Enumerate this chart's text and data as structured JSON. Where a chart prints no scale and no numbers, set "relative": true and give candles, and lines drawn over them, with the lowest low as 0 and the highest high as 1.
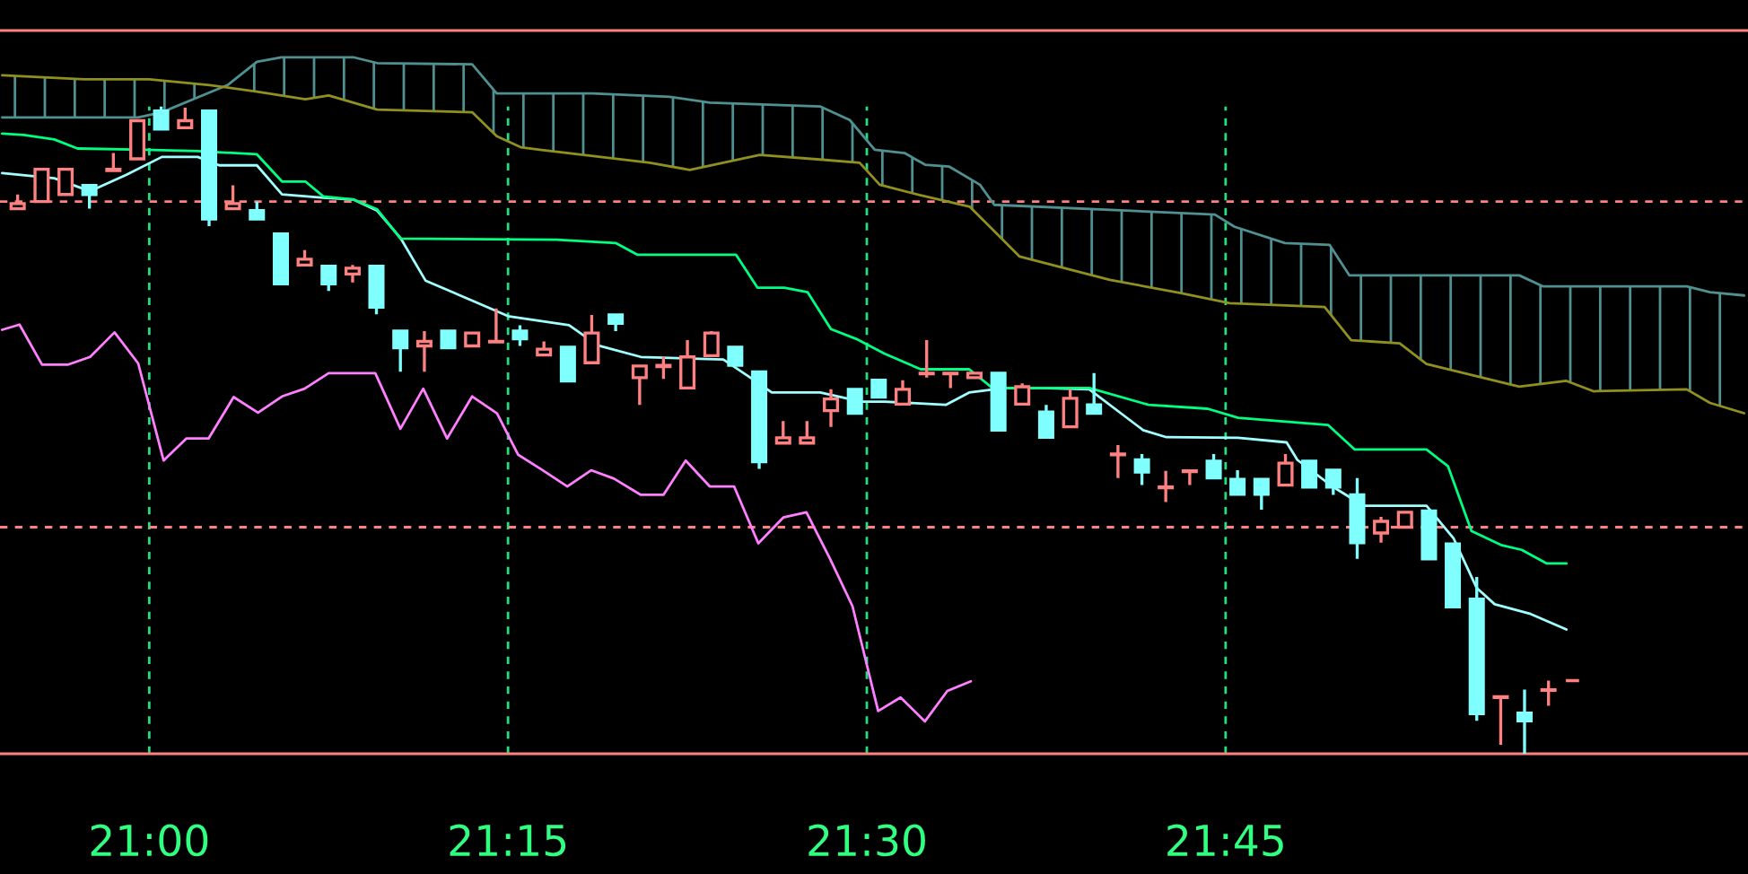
{
  "chart_data": {
    "type": "candlestick",
    "relative": true,
    "x": [
      20.9083,
      20.925,
      20.9417,
      20.9583,
      20.975,
      20.9917,
      21.0083,
      21.025,
      21.0417,
      21.0583,
      21.075,
      21.0917,
      21.1083,
      21.125,
      21.1417,
      21.1583,
      21.175,
      21.1917,
      21.2083,
      21.225,
      21.2417,
      21.2583,
      21.275,
      21.2917,
      21.3083,
      21.325,
      21.3417,
      21.3583,
      21.375,
      21.3917,
      21.4083,
      21.425,
      21.4417,
      21.4583,
      21.475,
      21.4917,
      21.5083,
      21.525,
      21.5417,
      21.5583,
      21.575,
      21.5917,
      21.6083,
      21.625,
      21.6417,
      21.6583,
      21.675,
      21.6917,
      21.7083,
      21.725,
      21.7417,
      21.7583,
      21.775,
      21.7917,
      21.8083,
      21.825,
      21.8417,
      21.8583,
      21.875,
      21.8917,
      21.9083,
      21.925,
      21.9417,
      21.9583,
      21.975,
      21.9917
    ],
    "ohlc": [
      [
        0.842,
        0.864,
        0.842,
        0.85
      ],
      [
        0.853,
        0.903,
        0.853,
        0.903
      ],
      [
        0.864,
        0.903,
        0.864,
        0.903
      ],
      [
        0.878,
        0.878,
        0.842,
        0.864
      ],
      [
        0.901,
        0.928,
        0.901,
        0.903
      ],
      [
        0.919,
        0.978,
        0.919,
        0.978
      ],
      [
        0.993,
        1,
        0.965,
        0.965
      ],
      [
        0.967,
        0.998,
        0.967,
        0.978
      ],
      [
        0.993,
        0.993,
        0.815,
        0.826
      ],
      [
        0.842,
        0.878,
        0.842,
        0.85
      ],
      [
        0.839,
        0.853,
        0.826,
        0.826
      ],
      [
        0.803,
        0.803,
        0.726,
        0.726
      ],
      [
        0.755,
        0.778,
        0.755,
        0.764
      ],
      [
        0.753,
        0.753,
        0.715,
        0.726
      ],
      [
        0.741,
        0.755,
        0.728,
        0.75
      ],
      [
        0.753,
        0.753,
        0.679,
        0.69
      ],
      [
        0.653,
        0.653,
        0.59,
        0.627
      ],
      [
        0.63,
        0.653,
        0.59,
        0.637
      ],
      [
        0.653,
        0.653,
        0.627,
        0.627
      ],
      [
        0.63,
        0.65,
        0.63,
        0.65
      ],
      [
        0.636,
        0.688,
        0.636,
        0.637
      ],
      [
        0.653,
        0.662,
        0.63,
        0.641
      ],
      [
        0.616,
        0.637,
        0.616,
        0.625
      ],
      [
        0.628,
        0.628,
        0.576,
        0.576
      ],
      [
        0.604,
        0.678,
        0.604,
        0.65
      ],
      [
        0.678,
        0.678,
        0.653,
        0.665
      ],
      [
        0.581,
        0.599,
        0.539,
        0.599
      ],
      [
        0.598,
        0.613,
        0.579,
        0.6
      ],
      [
        0.565,
        0.639,
        0.565,
        0.613
      ],
      [
        0.615,
        0.653,
        0.615,
        0.65
      ],
      [
        0.628,
        0.628,
        0.6,
        0.6
      ],
      [
        0.59,
        0.59,
        0.44,
        0.451
      ],
      [
        0.48,
        0.514,
        0.48,
        0.488
      ],
      [
        0.48,
        0.514,
        0.48,
        0.488
      ],
      [
        0.53,
        0.563,
        0.505,
        0.548
      ],
      [
        0.563,
        0.563,
        0.526,
        0.526
      ],
      [
        0.577,
        0.577,
        0.551,
        0.551
      ],
      [
        0.54,
        0.577,
        0.54,
        0.563
      ],
      [
        0.587,
        0.639,
        0.581,
        0.588
      ],
      [
        0.587,
        0.588,
        0.565,
        0.588
      ],
      [
        0.581,
        0.588,
        0.581,
        0.588
      ],
      [
        0.588,
        0.588,
        0.5,
        0.5
      ],
      [
        0.54,
        0.572,
        0.54,
        0.567
      ],
      [
        0.528,
        0.539,
        0.489,
        0.489
      ],
      [
        0.505,
        0.563,
        0.505,
        0.549
      ],
      [
        0.539,
        0.588,
        0.526,
        0.526
      ],
      [
        0.462,
        0.477,
        0.426,
        0.463
      ],
      [
        0.454,
        0.463,
        0.415,
        0.435
      ],
      [
        0.411,
        0.437,
        0.389,
        0.412
      ],
      [
        0.436,
        0.437,
        0.415,
        0.437
      ],
      [
        0.452,
        0.463,
        0.426,
        0.426
      ],
      [
        0.424,
        0.438,
        0.401,
        0.401
      ],
      [
        0.424,
        0.424,
        0.377,
        0.401
      ],
      [
        0.415,
        0.463,
        0.415,
        0.449
      ],
      [
        0.452,
        0.452,
        0.412,
        0.412
      ],
      [
        0.438,
        0.438,
        0.4,
        0.412
      ],
      [
        0.4,
        0.426,
        0.301,
        0.326
      ],
      [
        0.341,
        0.366,
        0.326,
        0.359
      ],
      [
        0.35,
        0.373,
        0.35,
        0.373
      ],
      [
        0.375,
        0.375,
        0.301,
        0.301
      ],
      [
        0.324,
        0.324,
        0.227,
        0.227
      ],
      [
        0.239,
        0.273,
        0.051,
        0.062
      ],
      [
        0.087,
        0.088,
        0.014,
        0.088
      ],
      [
        0.063,
        0.099,
        0,
        0.051
      ],
      [
        0.098,
        0.113,
        0.074,
        0.099
      ],
      [
        0.113,
        0.113,
        0.113,
        0.113
      ]
    ],
    "colors": [
      "#ff8080",
      "#ff8080",
      "#ff8080",
      "#80ffff",
      "#ff8080",
      "#ff8080",
      "#80ffff",
      "#ff8080",
      "#80ffff",
      "#ff8080",
      "#80ffff",
      "#80ffff",
      "#ff8080",
      "#80ffff",
      "#ff8080",
      "#80ffff",
      "#80ffff",
      "#ff8080",
      "#80ffff",
      "#ff8080",
      "#ff8080",
      "#80ffff",
      "#ff8080",
      "#80ffff",
      "#ff8080",
      "#80ffff",
      "#ff8080",
      "#ff8080",
      "#ff8080",
      "#ff8080",
      "#80ffff",
      "#80ffff",
      "#ff8080",
      "#ff8080",
      "#ff8080",
      "#80ffff",
      "#80ffff",
      "#ff8080",
      "#ff8080",
      "#ff8080",
      "#ff8080",
      "#80ffff",
      "#ff8080",
      "#80ffff",
      "#ff8080",
      "#80ffff",
      "#ff8080",
      "#80ffff",
      "#ff8080",
      "#ff8080",
      "#80ffff",
      "#80ffff",
      "#80ffff",
      "#ff8080",
      "#80ffff",
      "#80ffff",
      "#80ffff",
      "#ff8080",
      "#ff8080",
      "#80ffff",
      "#80ffff",
      "#80ffff",
      "#ff8080",
      "#80ffff",
      "#ff8080",
      "#ff8080"
    ],
    "xlim": [
      20.896,
      22.114
    ],
    "xticks": [
      {
        "value": 21,
        "label": "21:00"
      },
      {
        "value": 21.25,
        "label": "21:15"
      },
      {
        "value": 21.5,
        "label": "21:30"
      },
      {
        "value": 21.75,
        "label": "21:45"
      }
    ],
    "grid": "x",
    "ref_lines": [
      {
        "axis": "y",
        "value": 0.853,
        "color": "#ff8080",
        "line_style": "dashed"
      },
      {
        "axis": "y",
        "value": 0.35,
        "color": "#ff8080",
        "line_style": "dashed"
      }
    ],
    "series": [
      {
        "type": "line",
        "color": "#a0ffff",
        "x": [
          20.8975,
          20.9338,
          20.9588,
          20.9838,
          21.0088,
          21.0338,
          21.0488,
          21.075,
          21.0925,
          21.1213,
          21.1425,
          21.1588,
          21.175,
          21.1925,
          21.225,
          21.25,
          21.2925,
          21.3125,
          21.3425,
          21.4,
          21.4175,
          21.4338,
          21.4675,
          21.4963,
          21.5125,
          21.555,
          21.5713,
          21.5963,
          21.6213,
          21.655,
          21.6925,
          21.7088,
          21.7588,
          21.7925,
          21.8,
          21.825,
          21.8463,
          21.89,
          21.9088,
          21.925,
          21.9375,
          21.9625,
          21.9875
        ],
        "values": [
          0.897,
          0.889,
          0.869,
          0.894,
          0.922,
          0.922,
          0.909,
          0.909,
          0.864,
          0.859,
          0.856,
          0.839,
          0.797,
          0.731,
          0.7,
          0.676,
          0.662,
          0.631,
          0.613,
          0.609,
          0.583,
          0.558,
          0.558,
          0.544,
          0.544,
          0.539,
          0.558,
          0.565,
          0.565,
          0.563,
          0.5,
          0.489,
          0.488,
          0.481,
          0.454,
          0.412,
          0.383,
          0.383,
          0.333,
          0.256,
          0.231,
          0.216,
          0.192
        ]
      },
      {
        "type": "line",
        "color": "#00ff80",
        "x": [
          20.8975,
          20.9125,
          20.9338,
          20.95,
          20.9963,
          21.0338,
          21.075,
          21.0925,
          21.1088,
          21.1213,
          21.1425,
          21.1588,
          21.175,
          21.2838,
          21.325,
          21.34,
          21.4088,
          21.4238,
          21.4425,
          21.4588,
          21.475,
          21.4925,
          21.5125,
          21.5375,
          21.5713,
          21.5875,
          21.655,
          21.6963,
          21.7375,
          21.7588,
          21.8213,
          21.84,
          21.89,
          21.905,
          21.9213,
          21.9425,
          21.9563,
          21.9738,
          21.9875
        ],
        "values": [
          0.958,
          0.956,
          0.949,
          0.935,
          0.933,
          0.931,
          0.926,
          0.884,
          0.884,
          0.861,
          0.856,
          0.841,
          0.796,
          0.794,
          0.789,
          0.771,
          0.771,
          0.72,
          0.72,
          0.713,
          0.656,
          0.641,
          0.618,
          0.594,
          0.594,
          0.565,
          0.565,
          0.539,
          0.533,
          0.519,
          0.508,
          0.47,
          0.47,
          0.444,
          0.344,
          0.322,
          0.315,
          0.294,
          0.294
        ]
      },
      {
        "type": "line",
        "color": "#ff80ff",
        "x": [
          20.8975,
          20.9096,
          20.9253,
          20.9431,
          20.9588,
          20.9758,
          20.9923,
          21.01,
          21.0258,
          21.0413,
          21.0588,
          21.0758,
          21.0925,
          21.1083,
          21.125,
          21.1575,
          21.175,
          21.1909,
          21.2075,
          21.225,
          21.2423,
          21.257,
          21.2735,
          21.2913,
          21.3079,
          21.3238,
          21.3425,
          21.3583,
          21.3738,
          21.3905,
          21.4075,
          21.4244,
          21.4418,
          21.4579,
          21.4744,
          21.49,
          21.5079,
          21.5235,
          21.5405,
          21.5561,
          21.5725
        ],
        "values": [
          0.655,
          0.663,
          0.601,
          0.601,
          0.613,
          0.651,
          0.603,
          0.453,
          0.487,
          0.487,
          0.551,
          0.527,
          0.552,
          0.564,
          0.588,
          0.588,
          0.502,
          0.564,
          0.487,
          0.552,
          0.526,
          0.462,
          0.439,
          0.413,
          0.438,
          0.425,
          0.4,
          0.4,
          0.453,
          0.413,
          0.413,
          0.325,
          0.365,
          0.373,
          0.301,
          0.228,
          0.066,
          0.087,
          0.05,
          0.097,
          0.112
        ]
      },
      {
        "type": "line",
        "color": "#509090",
        "x": [
          20.8975,
          20.9921,
          21.0088,
          21.0338,
          21.0546,
          21.075,
          21.0921,
          21.1421,
          21.1588,
          21.225,
          21.2421,
          21.3088,
          21.3625,
          21.3905,
          21.4673,
          21.4881,
          21.5055,
          21.5263,
          21.5406,
          21.5575,
          21.5788,
          21.5888,
          21.7425,
          21.7563,
          21.7913,
          21.8225,
          21.8363,
          21.9546,
          21.9713,
          22.0713,
          22.0875,
          22.1113
        ],
        "values": [
          0.983,
          0.983,
          0.991,
          1.014,
          1.033,
          1.069,
          1.076,
          1.076,
          1.067,
          1.065,
          1.02,
          1.02,
          1.015,
          1.006,
          1.0,
          0.979,
          0.933,
          0.928,
          0.91,
          0.907,
          0.879,
          0.848,
          0.833,
          0.814,
          0.789,
          0.786,
          0.739,
          0.739,
          0.722,
          0.722,
          0.713,
          0.708
        ]
      },
      {
        "type": "line",
        "color": "#909020",
        "x": [
          20.8975,
          20.9546,
          21.0,
          21.0421,
          21.075,
          21.1088,
          21.125,
          21.1588,
          21.225,
          21.2421,
          21.2588,
          21.2721,
          21.3488,
          21.3766,
          21.4254,
          21.4673,
          21.495,
          21.509,
          21.5369,
          21.5718,
          21.6065,
          21.6693,
          21.718,
          21.7529,
          21.819,
          21.8375,
          21.8713,
          21.89,
          21.9546,
          21.9875,
          22.0063,
          22.0713,
          22.0875,
          22.1113
        ],
        "values": [
          1.048,
          1.042,
          1.042,
          1.033,
          1.023,
          1.011,
          1.017,
          0.995,
          0.991,
          0.954,
          0.937,
          0.933,
          0.913,
          0.902,
          0.925,
          0.918,
          0.913,
          0.879,
          0.863,
          0.845,
          0.768,
          0.732,
          0.712,
          0.696,
          0.69,
          0.639,
          0.634,
          0.602,
          0.567,
          0.576,
          0.56,
          0.563,
          0.542,
          0.526
        ]
      }
    ]
  }
}
